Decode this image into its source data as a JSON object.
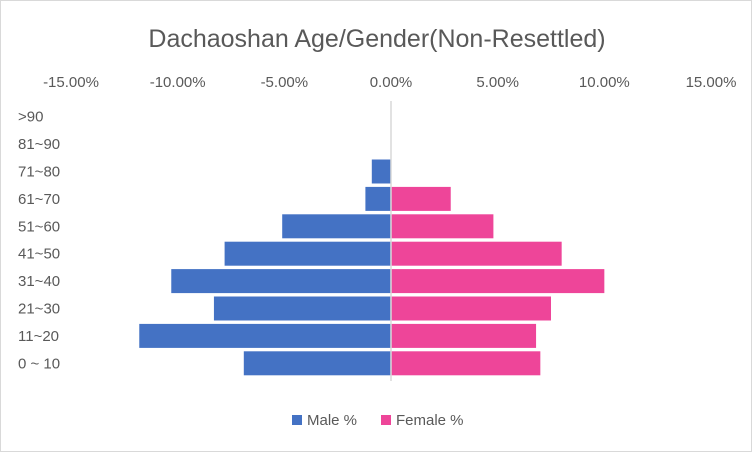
{
  "chart_data": {
    "type": "bar",
    "orientation": "horizontal",
    "title": "Dachaoshan Age/Gender(Non-Resettled)",
    "x_ticks": [
      "-15.00%",
      "-10.00%",
      "-5.00%",
      "0.00%",
      "5.00%",
      "10.00%",
      "15.00%"
    ],
    "xlim": [
      -15,
      15
    ],
    "categories": [
      ">90",
      "81~90",
      "71~80",
      "61~70",
      "51~60",
      "41~50",
      "31~40",
      "21~30",
      "11~20",
      "0 ~ 10"
    ],
    "series": [
      {
        "name": "Male %",
        "color": "#4472C4",
        "values": [
          0,
          0,
          -0.9,
          -1.2,
          -5.1,
          -7.8,
          -10.3,
          -8.3,
          -11.8,
          -6.9
        ]
      },
      {
        "name": "Female %",
        "color": "#EE4599",
        "values": [
          0,
          0,
          0,
          2.8,
          4.8,
          8.0,
          10.0,
          7.5,
          6.8,
          7.0
        ]
      }
    ],
    "legend_position": "bottom",
    "grid": false,
    "xlabel": "",
    "ylabel": ""
  }
}
